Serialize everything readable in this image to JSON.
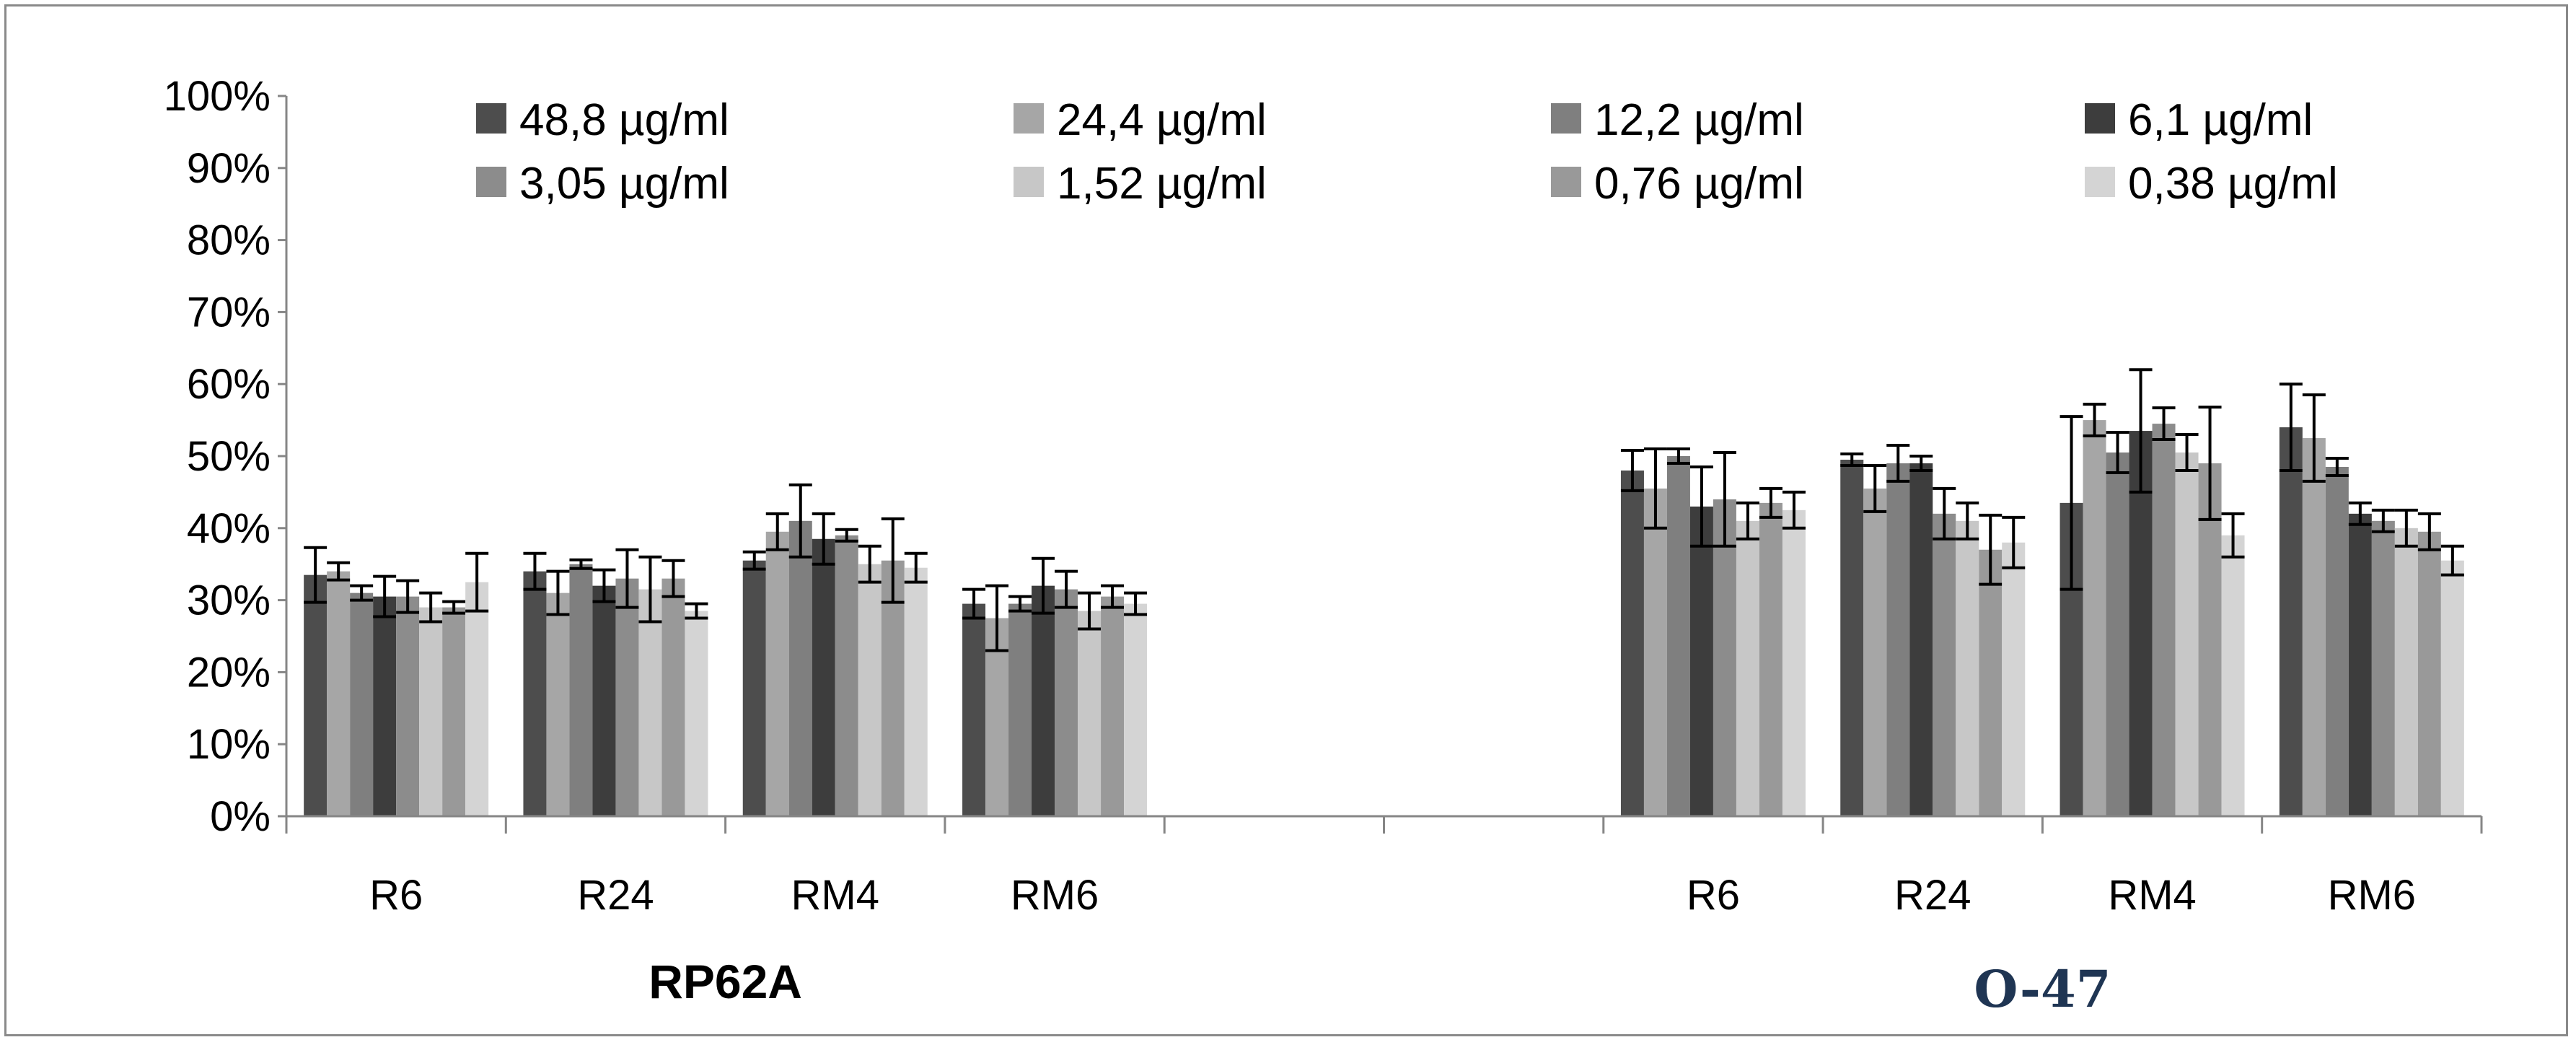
{
  "chart_data": {
    "type": "bar",
    "title": "",
    "xlabel": "",
    "ylabel": "",
    "ylim": [
      0,
      100
    ],
    "yticks": [
      "0%",
      "10%",
      "20%",
      "30%",
      "40%",
      "50%",
      "60%",
      "70%",
      "80%",
      "90%",
      "100%"
    ],
    "grid": false,
    "legend_position": "top",
    "categories": [
      "R6",
      "R24",
      "RM4",
      "RM6",
      "",
      "",
      "R6",
      "R24",
      "RM4",
      "RM6"
    ],
    "groups": [
      {
        "label": "RP62A",
        "color": "#000000",
        "categories": [
          "R6",
          "R24",
          "RM4",
          "RM6"
        ]
      },
      {
        "label": "O-47",
        "color": "#1f3553",
        "categories": [
          "R6",
          "R24",
          "RM4",
          "RM6"
        ]
      }
    ],
    "series": [
      {
        "name": "48,8 µg/ml",
        "color": "#4d4d4d",
        "values": [
          33.5,
          34,
          35.5,
          29.5,
          null,
          null,
          48,
          49.5,
          43.5,
          54
        ],
        "errors": [
          3.8,
          2.5,
          1.2,
          2.0,
          null,
          null,
          2.8,
          0.8,
          12.0,
          6.0
        ]
      },
      {
        "name": "24,4 µg/ml",
        "color": "#a6a6a6",
        "values": [
          34,
          31,
          39.5,
          27.5,
          null,
          null,
          45.5,
          45.5,
          55,
          52.5
        ],
        "errors": [
          1.2,
          3.0,
          2.5,
          4.5,
          null,
          null,
          5.5,
          3.2,
          2.2,
          6.0
        ]
      },
      {
        "name": "12,2 µg/ml",
        "color": "#7f7f7f",
        "values": [
          31,
          35,
          41,
          29.5,
          null,
          null,
          50,
          49,
          50.5,
          48.5
        ],
        "errors": [
          1.0,
          0.6,
          5.0,
          1.0,
          null,
          null,
          1.0,
          2.5,
          2.8,
          1.2
        ]
      },
      {
        "name": "6,1 µg/ml",
        "color": "#3d3d3d",
        "values": [
          30.5,
          32,
          38.5,
          32,
          null,
          null,
          43,
          49,
          53.5,
          42
        ],
        "errors": [
          2.8,
          2.2,
          3.5,
          3.8,
          null,
          null,
          5.5,
          1.0,
          8.5,
          1.5
        ]
      },
      {
        "name": "3,05 µg/ml",
        "color": "#8c8c8c",
        "values": [
          30.5,
          33,
          39,
          31.5,
          null,
          null,
          44,
          42,
          54.5,
          41
        ],
        "errors": [
          2.2,
          4.0,
          0.8,
          2.5,
          null,
          null,
          6.5,
          3.5,
          2.2,
          1.5
        ]
      },
      {
        "name": "1,52 µg/ml",
        "color": "#c7c7c7",
        "values": [
          29,
          31.5,
          35,
          28.5,
          null,
          null,
          41,
          41,
          50.5,
          40
        ],
        "errors": [
          2.0,
          4.5,
          2.5,
          2.5,
          null,
          null,
          2.5,
          2.5,
          2.5,
          2.5
        ]
      },
      {
        "name": "0,76 µg/ml",
        "color": "#999999",
        "values": [
          29,
          33,
          35.5,
          30.5,
          null,
          null,
          43.5,
          37,
          49,
          39.5
        ],
        "errors": [
          0.8,
          2.5,
          5.8,
          1.5,
          null,
          null,
          2.0,
          4.8,
          7.8,
          2.5
        ]
      },
      {
        "name": "0,38 µg/ml",
        "color": "#d4d4d4",
        "values": [
          32.5,
          28.5,
          34.5,
          29.5,
          null,
          null,
          42.5,
          38,
          39,
          35.5
        ],
        "errors": [
          4.0,
          1.0,
          2.0,
          1.5,
          null,
          null,
          2.5,
          3.5,
          3.0,
          2.0
        ]
      }
    ]
  }
}
